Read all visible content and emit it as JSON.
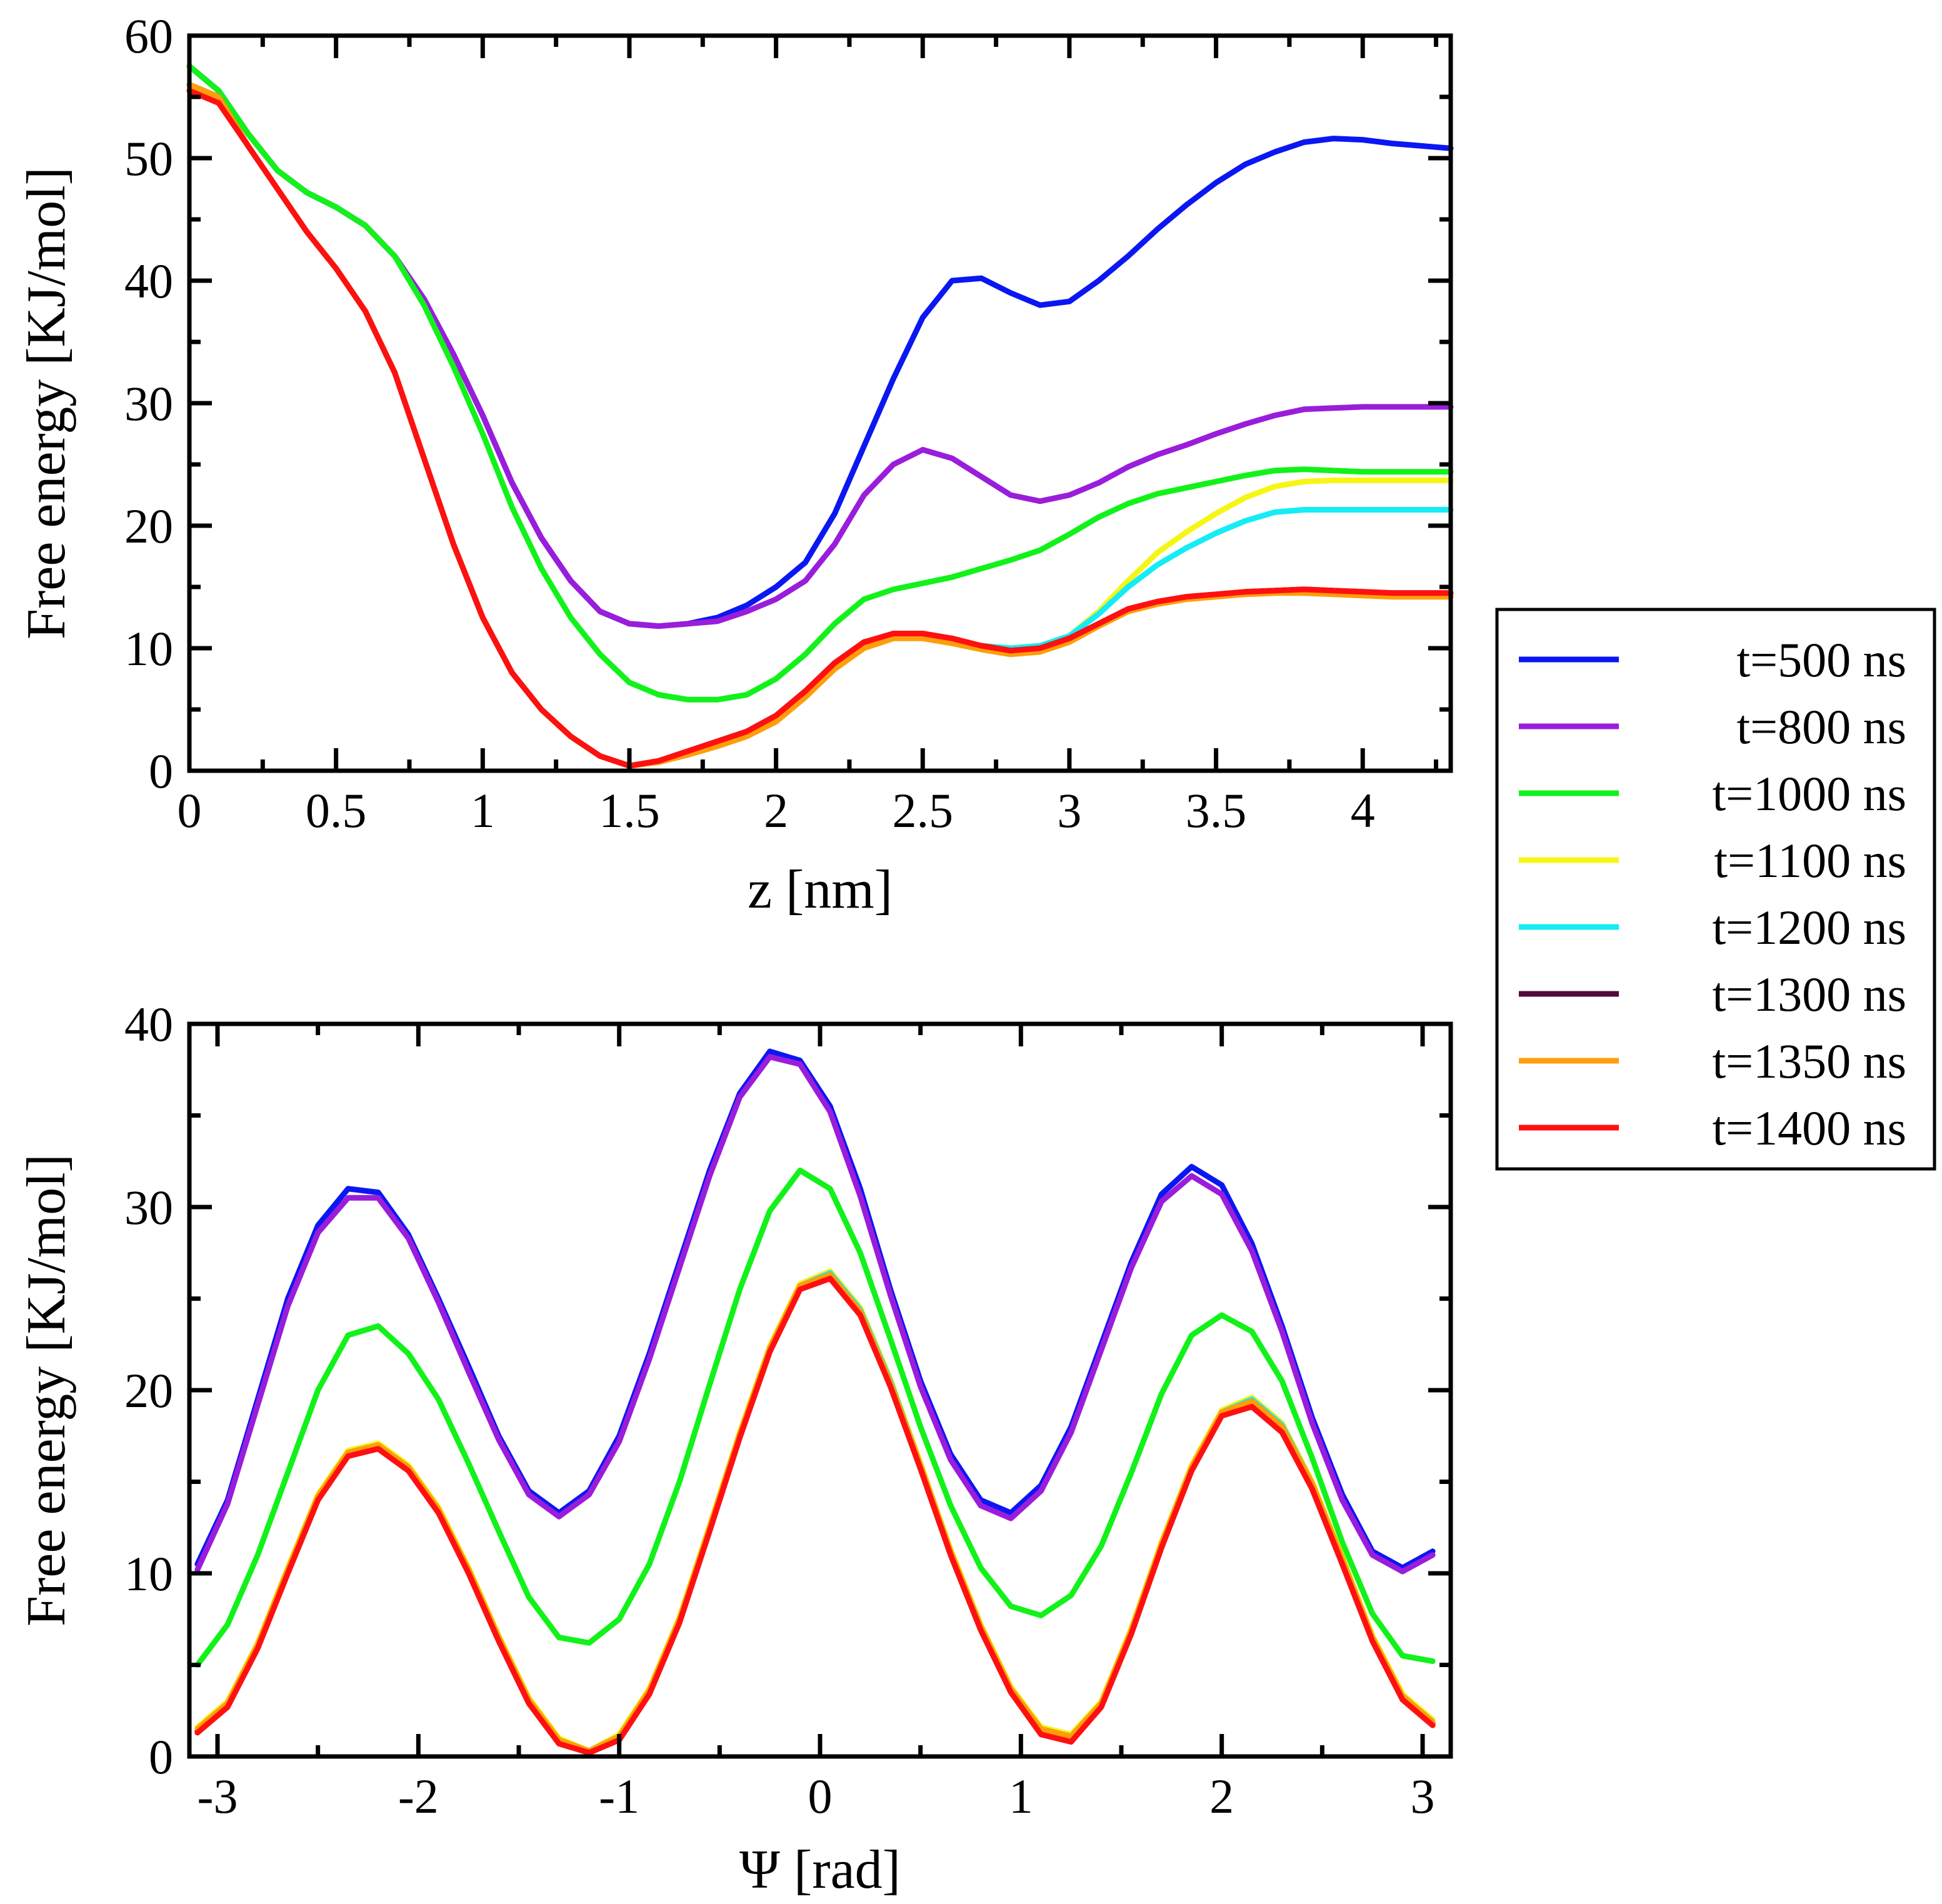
{
  "colors": {
    "t500": "#0b17f2",
    "t800": "#9a1ddb",
    "t1000": "#12f21a",
    "t1100": "#f6f616",
    "t1200": "#15ecf5",
    "t1300": "#520a3a",
    "t1350": "#ff9e0a",
    "t1400": "#ff1010"
  },
  "legend": {
    "placement": "right-middle",
    "entries": [
      {
        "key": "t500",
        "label": "t=500 ns",
        "color": "#0b17f2"
      },
      {
        "key": "t800",
        "label": "t=800 ns",
        "color": "#9a1ddb"
      },
      {
        "key": "t1000",
        "label": "t=1000 ns",
        "color": "#12f21a"
      },
      {
        "key": "t1100",
        "label": "t=1100 ns",
        "color": "#f6f616"
      },
      {
        "key": "t1200",
        "label": "t=1200 ns",
        "color": "#15ecf5"
      },
      {
        "key": "t1300",
        "label": "t=1300 ns",
        "color": "#520a3a"
      },
      {
        "key": "t1350",
        "label": "t=1350 ns",
        "color": "#ff9e0a"
      },
      {
        "key": "t1400",
        "label": "t=1400 ns",
        "color": "#ff1010"
      }
    ]
  },
  "chart_data": [
    {
      "id": "top",
      "type": "line",
      "title": "",
      "xlabel": "z [nm]",
      "ylabel": "Free energy [KJ/mol]",
      "xlim": [
        0,
        4.3
      ],
      "ylim": [
        0,
        60
      ],
      "xticks": [
        0,
        0.5,
        1,
        1.5,
        2,
        2.5,
        3,
        3.5,
        4
      ],
      "xtick_labels": [
        "0",
        "0.5",
        "1",
        "1.5",
        "2",
        "2.5",
        "3",
        "3.5",
        "4"
      ],
      "yticks": [
        0,
        10,
        20,
        30,
        40,
        50,
        60
      ],
      "ytick_labels": [
        "0",
        "10",
        "20",
        "30",
        "40",
        "50",
        "60"
      ],
      "grid": false,
      "x": [
        0,
        0.1,
        0.2,
        0.3,
        0.4,
        0.5,
        0.6,
        0.7,
        0.8,
        0.9,
        1.0,
        1.1,
        1.2,
        1.3,
        1.4,
        1.5,
        1.6,
        1.7,
        1.8,
        1.9,
        2.0,
        2.1,
        2.2,
        2.3,
        2.4,
        2.5,
        2.6,
        2.7,
        2.8,
        2.9,
        3.0,
        3.1,
        3.2,
        3.3,
        3.4,
        3.5,
        3.6,
        3.7,
        3.8,
        3.9,
        4.0,
        4.1,
        4.2,
        4.3
      ],
      "series": [
        {
          "key": "t500",
          "name": "t=500 ns",
          "values": [
            57.5,
            55.5,
            52,
            49,
            47.2,
            46,
            44.5,
            42,
            38.5,
            34,
            29,
            23.5,
            19,
            15.5,
            13,
            12,
            11.8,
            12,
            12.5,
            13.5,
            15,
            17,
            21,
            26.5,
            32,
            37,
            40,
            40.2,
            39,
            38,
            38.3,
            40,
            42,
            44.2,
            46.2,
            48,
            49.5,
            50.5,
            51.3,
            51.6,
            51.5,
            51.2,
            51,
            50.8
          ]
        },
        {
          "key": "t800",
          "name": "t=800 ns",
          "values": [
            57.5,
            55.5,
            52,
            49,
            47.2,
            46,
            44.5,
            42,
            38.5,
            34,
            29,
            23.5,
            19,
            15.5,
            13,
            12,
            11.8,
            12,
            12.2,
            13,
            14,
            15.5,
            18.5,
            22.5,
            25,
            26.2,
            25.5,
            24,
            22.5,
            22,
            22.5,
            23.5,
            24.8,
            25.8,
            26.6,
            27.5,
            28.3,
            29,
            29.5,
            29.6,
            29.7,
            29.7,
            29.7,
            29.7
          ]
        },
        {
          "key": "t1000",
          "name": "t=1000 ns",
          "values": [
            57.5,
            55.5,
            52,
            49,
            47.2,
            46,
            44.5,
            42,
            38,
            33,
            27.5,
            21.5,
            16.5,
            12.5,
            9.5,
            7.2,
            6.2,
            5.8,
            5.8,
            6.2,
            7.5,
            9.5,
            12,
            14,
            14.8,
            15.3,
            15.8,
            16.5,
            17.2,
            18,
            19.3,
            20.7,
            21.8,
            22.6,
            23.1,
            23.6,
            24.1,
            24.5,
            24.6,
            24.5,
            24.4,
            24.4,
            24.4,
            24.4
          ]
        },
        {
          "key": "t1100",
          "name": "t=1100 ns",
          "values": [
            56,
            55,
            51,
            47.5,
            44,
            41,
            37.5,
            32.5,
            25.5,
            18.5,
            12.5,
            8,
            5,
            2.8,
            1.2,
            0.4,
            0.8,
            1.6,
            2.4,
            3.2,
            4.5,
            6.5,
            8.8,
            10.5,
            11,
            11,
            10.7,
            10.2,
            10,
            10.2,
            11,
            13,
            15.5,
            17.8,
            19.5,
            21,
            22.3,
            23.2,
            23.6,
            23.7,
            23.7,
            23.7,
            23.7,
            23.7
          ]
        },
        {
          "key": "t1200",
          "name": "t=1200 ns",
          "values": [
            56,
            55,
            51,
            47.5,
            44,
            41,
            37.5,
            32.5,
            25.5,
            18.5,
            12.5,
            8,
            5,
            2.8,
            1.2,
            0.4,
            0.8,
            1.6,
            2.4,
            3.2,
            4.5,
            6.5,
            8.8,
            10.5,
            11,
            11,
            10.7,
            10.2,
            10,
            10.2,
            11,
            12.8,
            15,
            16.8,
            18.2,
            19.4,
            20.4,
            21.1,
            21.3,
            21.3,
            21.3,
            21.3,
            21.3,
            21.3
          ]
        },
        {
          "key": "t1300",
          "name": "t=1300 ns",
          "values": [
            56,
            55,
            51,
            47.5,
            44,
            41,
            37.5,
            32.5,
            25.5,
            18.5,
            12.5,
            8,
            5,
            2.8,
            1.2,
            0.4,
            0.8,
            1.6,
            2.4,
            3.2,
            4.5,
            6.5,
            8.8,
            10.5,
            11,
            11,
            10.7,
            10.2,
            9.8,
            10,
            10.8,
            12,
            13.2,
            13.8,
            14.2,
            14.4,
            14.6,
            14.7,
            14.8,
            14.7,
            14.6,
            14.5,
            14.5,
            14.5
          ]
        },
        {
          "key": "t1350",
          "name": "t=1350 ns",
          "values": [
            56,
            55,
            51,
            47.5,
            44,
            41,
            37.5,
            32.5,
            25.5,
            18.5,
            12.5,
            8,
            5,
            2.8,
            1.2,
            0.4,
            0.7,
            1.3,
            2,
            2.8,
            4,
            6,
            8.3,
            10,
            10.8,
            10.8,
            10.4,
            9.9,
            9.5,
            9.7,
            10.5,
            11.8,
            13,
            13.6,
            14,
            14.2,
            14.4,
            14.5,
            14.5,
            14.4,
            14.3,
            14.2,
            14.2,
            14.2
          ]
        },
        {
          "key": "t1400",
          "name": "t=1400 ns",
          "values": [
            55.5,
            54.5,
            51,
            47.5,
            44,
            41,
            37.5,
            32.5,
            25.5,
            18.5,
            12.5,
            8,
            5,
            2.8,
            1.2,
            0.4,
            0.8,
            1.6,
            2.4,
            3.2,
            4.5,
            6.5,
            8.8,
            10.5,
            11.2,
            11.2,
            10.8,
            10.2,
            9.8,
            10,
            10.8,
            12,
            13.2,
            13.8,
            14.2,
            14.4,
            14.6,
            14.7,
            14.8,
            14.7,
            14.6,
            14.5,
            14.5,
            14.5
          ]
        }
      ]
    },
    {
      "id": "bottom",
      "type": "line",
      "title": "",
      "xlabel": "Ψ [rad]",
      "ylabel": "Free energy [KJ/mol]",
      "xlim": [
        -3.14,
        3.14
      ],
      "ylim": [
        0,
        40
      ],
      "xticks": [
        -3,
        -2,
        -1,
        0,
        1,
        2,
        3
      ],
      "xtick_labels": [
        "-3",
        "-2",
        "-1",
        "0",
        "1",
        "2",
        "3"
      ],
      "yticks": [
        0,
        10,
        20,
        30,
        40
      ],
      "ytick_labels": [
        "0",
        "10",
        "20",
        "30",
        "40"
      ],
      "grid": false,
      "x": [
        -3.1,
        -2.95,
        -2.8,
        -2.65,
        -2.5,
        -2.35,
        -2.2,
        -2.05,
        -1.9,
        -1.75,
        -1.6,
        -1.45,
        -1.3,
        -1.15,
        -1.0,
        -0.85,
        -0.7,
        -0.55,
        -0.4,
        -0.25,
        -0.1,
        0.05,
        0.2,
        0.35,
        0.5,
        0.65,
        0.8,
        0.95,
        1.1,
        1.25,
        1.4,
        1.55,
        1.7,
        1.85,
        2.0,
        2.15,
        2.3,
        2.45,
        2.6,
        2.75,
        2.9,
        3.05
      ],
      "series": [
        {
          "key": "t500",
          "name": "t=500 ns",
          "values": [
            10.5,
            14,
            19.5,
            25,
            29,
            31,
            30.8,
            28.5,
            25,
            21.3,
            17.5,
            14.5,
            13.3,
            14.5,
            17.5,
            22,
            27,
            32,
            36.2,
            38.5,
            38,
            35.5,
            31,
            25.5,
            20.5,
            16.5,
            14,
            13.3,
            14.8,
            18,
            22.5,
            27,
            30.7,
            32.2,
            31.2,
            28,
            23.5,
            18.5,
            14.3,
            11.2,
            10.3,
            11.2
          ]
        },
        {
          "key": "t800",
          "name": "t=800 ns",
          "values": [
            10.2,
            13.8,
            19.2,
            24.6,
            28.6,
            30.5,
            30.5,
            28.3,
            24.8,
            21,
            17.3,
            14.3,
            13.1,
            14.3,
            17.2,
            21.7,
            26.7,
            31.7,
            36,
            38.2,
            37.8,
            35.2,
            30.6,
            25.2,
            20.2,
            16.2,
            13.7,
            13,
            14.5,
            17.7,
            22.2,
            26.7,
            30.3,
            31.7,
            30.7,
            27.6,
            23.2,
            18.2,
            14,
            11,
            10.1,
            11
          ]
        },
        {
          "key": "t1000",
          "name": "t=1000 ns",
          "values": [
            5,
            7.2,
            11,
            15.5,
            20,
            23,
            23.5,
            22,
            19.5,
            16,
            12.3,
            8.7,
            6.5,
            6.2,
            7.5,
            10.5,
            15,
            20.3,
            25.5,
            29.8,
            32,
            31,
            27.5,
            22.8,
            18,
            13.7,
            10.3,
            8.2,
            7.7,
            8.8,
            11.5,
            15.5,
            19.8,
            23,
            24.1,
            23.2,
            20.5,
            16.3,
            11.7,
            7.8,
            5.5,
            5.2
          ]
        },
        {
          "key": "t1100",
          "name": "t=1100 ns",
          "values": [
            1.6,
            3,
            6.2,
            10.3,
            14.3,
            16.7,
            17.1,
            15.9,
            13.6,
            10.3,
            6.6,
            3.2,
            1,
            0.3,
            1.2,
            3.7,
            7.6,
            12.6,
            17.7,
            22.4,
            25.8,
            26.5,
            24.5,
            20.6,
            16,
            11.3,
            7.2,
            3.8,
            1.6,
            1.2,
            3,
            7,
            11.7,
            15.9,
            18.9,
            19.6,
            18.2,
            15,
            10.9,
            6.6,
            3.4,
            2
          ]
        },
        {
          "key": "t1200",
          "name": "t=1200 ns",
          "values": [
            1.5,
            2.9,
            6.1,
            10.2,
            14.2,
            16.6,
            17,
            15.8,
            13.5,
            10.2,
            6.5,
            3.1,
            0.9,
            0.3,
            1.1,
            3.6,
            7.5,
            12.5,
            17.6,
            22.3,
            25.7,
            26.4,
            24.4,
            20.5,
            15.9,
            11.2,
            7.1,
            3.7,
            1.5,
            1.1,
            2.9,
            6.9,
            11.6,
            15.8,
            18.8,
            19.5,
            18.1,
            14.9,
            10.8,
            6.5,
            3.3,
            1.9
          ]
        },
        {
          "key": "t1300",
          "name": "t=1300 ns",
          "values": [
            1.4,
            2.8,
            6,
            10.1,
            14.1,
            16.5,
            16.9,
            15.7,
            13.4,
            10.1,
            6.4,
            3,
            0.8,
            0.2,
            1,
            3.5,
            7.4,
            12.4,
            17.5,
            22.2,
            25.6,
            26.2,
            24.2,
            20.3,
            15.8,
            11.1,
            7,
            3.6,
            1.4,
            1,
            2.8,
            6.8,
            11.5,
            15.7,
            18.7,
            19.3,
            17.9,
            14.8,
            10.7,
            6.4,
            3.2,
            1.8
          ]
        },
        {
          "key": "t1350",
          "name": "t=1350 ns",
          "values": [
            1.5,
            2.9,
            6.1,
            10.2,
            14.2,
            16.6,
            17,
            15.8,
            13.5,
            10.2,
            6.5,
            3.1,
            0.9,
            0.3,
            1.1,
            3.6,
            7.5,
            12.5,
            17.6,
            22.3,
            25.7,
            26.3,
            24.3,
            20.4,
            15.9,
            11.2,
            7.1,
            3.7,
            1.5,
            1.1,
            2.9,
            6.9,
            11.6,
            15.8,
            18.8,
            19.4,
            18,
            14.9,
            10.8,
            6.5,
            3.3,
            1.9
          ]
        },
        {
          "key": "t1400",
          "name": "t=1400 ns",
          "values": [
            1.3,
            2.7,
            5.9,
            10,
            14,
            16.4,
            16.8,
            15.6,
            13.3,
            10,
            6.3,
            2.9,
            0.7,
            0.2,
            0.9,
            3.4,
            7.3,
            12.3,
            17.4,
            22.1,
            25.5,
            26.1,
            24.1,
            20.2,
            15.7,
            11,
            6.9,
            3.5,
            1.2,
            0.8,
            2.7,
            6.7,
            11.4,
            15.6,
            18.6,
            19.1,
            17.7,
            14.6,
            10.5,
            6.3,
            3.1,
            1.7
          ]
        }
      ]
    }
  ]
}
